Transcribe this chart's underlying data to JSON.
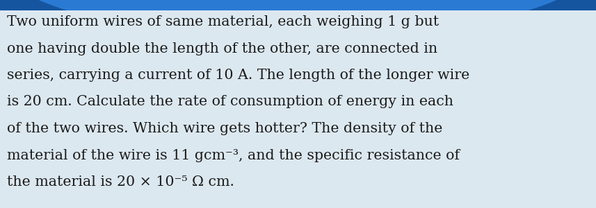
{
  "background_color": "#dce8f0",
  "text_color": "#1a1a1a",
  "font_size": 14.8,
  "lines": [
    "Two uniform wires of same material, each weighing 1 g but",
    "one having double the length of the other, are connected in",
    "series, carrying a current of 10 A. The length of the longer wire",
    "is 20 cm. Calculate the rate of consumption of energy in each",
    "of the two wires. Which wire gets hotter? The density of the",
    "material of the wire is 11 gcm⁻³, and the specific resistance of",
    "the material is 20 × 10⁻⁵ Ω cm."
  ],
  "figwidth": 8.57,
  "figheight": 3.0,
  "dpi": 100,
  "top_arc_color": "#1555a0",
  "top_arc_color2": "#2a7ad4"
}
